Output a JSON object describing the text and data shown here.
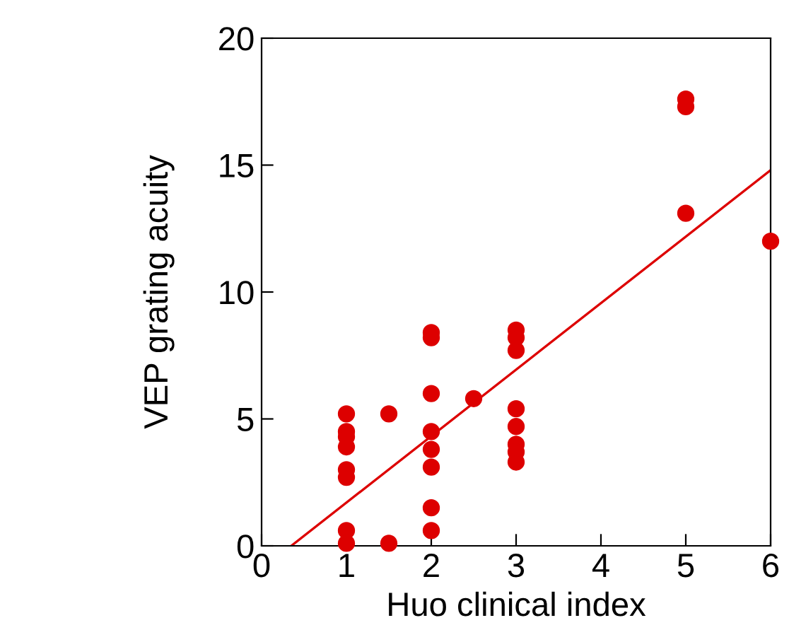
{
  "chart_data": {
    "type": "scatter",
    "xlabel": "Huo clinical index",
    "ylabel": "VEP grating acuity",
    "xlim": [
      0,
      6
    ],
    "ylim": [
      0,
      20
    ],
    "xticks": [
      0,
      1,
      2,
      3,
      4,
      5,
      6
    ],
    "yticks": [
      0,
      5,
      10,
      15,
      20
    ],
    "grid": false,
    "legend": false,
    "marker": "circle",
    "series": [
      {
        "color": "#dd0000",
        "x": [
          1,
          1,
          1,
          1,
          1,
          1,
          1,
          1,
          1.5,
          1.5,
          2,
          2,
          2,
          2,
          2,
          2,
          2,
          2,
          2.5,
          3,
          3,
          3,
          3,
          3,
          3,
          3,
          3,
          5,
          5,
          5,
          6
        ],
        "values": [
          5.2,
          4.5,
          4.3,
          3.9,
          3.0,
          2.7,
          0.6,
          0.1,
          5.2,
          0.1,
          8.4,
          8.2,
          6.0,
          4.5,
          3.8,
          3.1,
          1.5,
          0.6,
          5.8,
          8.5,
          8.2,
          7.7,
          5.4,
          4.7,
          4.0,
          3.7,
          3.3,
          17.6,
          17.3,
          13.1,
          12.0
        ]
      },
      {
        "type": "line",
        "marker": "none",
        "color": "#dd0000",
        "x": [
          0.35,
          6
        ],
        "values": [
          0,
          14.8
        ]
      }
    ]
  }
}
